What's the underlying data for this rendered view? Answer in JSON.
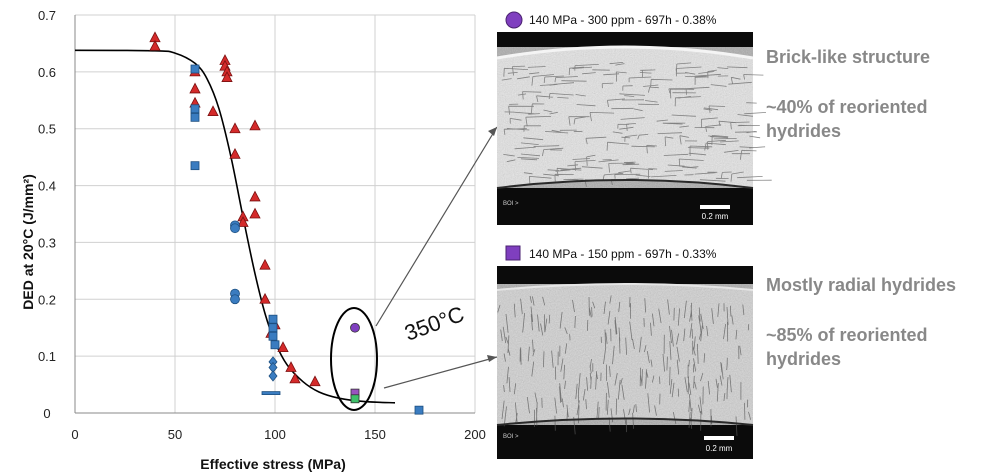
{
  "chart_data": {
    "type": "scatter",
    "title": "",
    "xlabel": "Effective stress (MPa)",
    "ylabel": "DED at 20°C (J/mm²)",
    "xlim": [
      0,
      200
    ],
    "ylim": [
      0,
      0.7
    ],
    "x_ticks": [
      "0",
      "50",
      "100",
      "150",
      "200"
    ],
    "y_ticks": [
      "0",
      "0.1",
      "0.2",
      "0.3",
      "0.4",
      "0.5",
      "0.6",
      "0.7"
    ],
    "grid": true,
    "legend": "none",
    "series": [
      {
        "marker": "triangle",
        "color": "#d42a2a",
        "points": [
          [
            40,
            0.66
          ],
          [
            40,
            0.645
          ],
          [
            60,
            0.6
          ],
          [
            60,
            0.57
          ],
          [
            60,
            0.545
          ],
          [
            69,
            0.53
          ],
          [
            75,
            0.62
          ],
          [
            75,
            0.61
          ],
          [
            76,
            0.6
          ],
          [
            76,
            0.59
          ],
          [
            80,
            0.5
          ],
          [
            80,
            0.455
          ],
          [
            84,
            0.345
          ],
          [
            84,
            0.335
          ],
          [
            90,
            0.505
          ],
          [
            90,
            0.38
          ],
          [
            90,
            0.35
          ],
          [
            95,
            0.26
          ],
          [
            95,
            0.2
          ],
          [
            98,
            0.14
          ],
          [
            100,
            0.155
          ],
          [
            104,
            0.115
          ],
          [
            108,
            0.08
          ],
          [
            110,
            0.06
          ],
          [
            120,
            0.055
          ]
        ]
      },
      {
        "marker": "square",
        "color": "#3a7cc0",
        "points": [
          [
            60,
            0.605
          ],
          [
            60,
            0.535
          ],
          [
            60,
            0.52
          ],
          [
            60,
            0.435
          ],
          [
            99,
            0.165
          ],
          [
            99,
            0.15
          ],
          [
            99,
            0.135
          ],
          [
            100,
            0.12
          ],
          [
            172,
            0.005
          ]
        ]
      },
      {
        "marker": "circle",
        "color": "#3a7cc0",
        "points": [
          [
            80,
            0.33
          ],
          [
            80,
            0.325
          ],
          [
            80,
            0.21
          ],
          [
            80,
            0.2
          ]
        ]
      },
      {
        "marker": "diamond",
        "color": "#3a7cc0",
        "points": [
          [
            99,
            0.09
          ],
          [
            99,
            0.08
          ],
          [
            99,
            0.065
          ]
        ]
      },
      {
        "marker": "dash",
        "color": "#3a7cc0",
        "points": [
          [
            98,
            0.035
          ]
        ]
      },
      {
        "marker": "circle",
        "color": "#7f3fbf",
        "points": [
          [
            140,
            0.15
          ]
        ]
      },
      {
        "marker": "square",
        "color": "#9a52c0",
        "points": [
          [
            140,
            0.035
          ]
        ]
      },
      {
        "marker": "square",
        "color": "#3fc06a",
        "points": [
          [
            140,
            0.025
          ]
        ]
      }
    ],
    "fit_curve": [
      [
        0,
        0.638
      ],
      [
        40,
        0.637
      ],
      [
        50,
        0.633
      ],
      [
        60,
        0.615
      ],
      [
        66,
        0.588
      ],
      [
        72,
        0.535
      ],
      [
        78,
        0.45
      ],
      [
        84,
        0.345
      ],
      [
        90,
        0.245
      ],
      [
        95,
        0.175
      ],
      [
        100,
        0.125
      ],
      [
        106,
        0.085
      ],
      [
        114,
        0.055
      ],
      [
        122,
        0.037
      ],
      [
        132,
        0.026
      ],
      [
        145,
        0.02
      ],
      [
        160,
        0.018
      ]
    ],
    "annotation": "350°C"
  },
  "micrographs": [
    {
      "marker_color": "#7f3fbf",
      "marker_shape": "circle",
      "caption": "140 MPa - 300 ppm - 697h - 0.38%",
      "description": "Brick-like structure",
      "fraction_line1": "~40% of reoriented",
      "fraction_line2": "hydrides",
      "scale_bar": "0.2 mm",
      "corner_label": "BOI >"
    },
    {
      "marker_color": "#7f3fbf",
      "marker_shape": "square",
      "caption": "140 MPa - 150 ppm - 697h - 0.33%",
      "description": "Mostly radial hydrides",
      "fraction_line1": "~85% of reoriented",
      "fraction_line2": "hydrides",
      "scale_bar": "0.2 mm",
      "corner_label": "BOI >"
    }
  ]
}
